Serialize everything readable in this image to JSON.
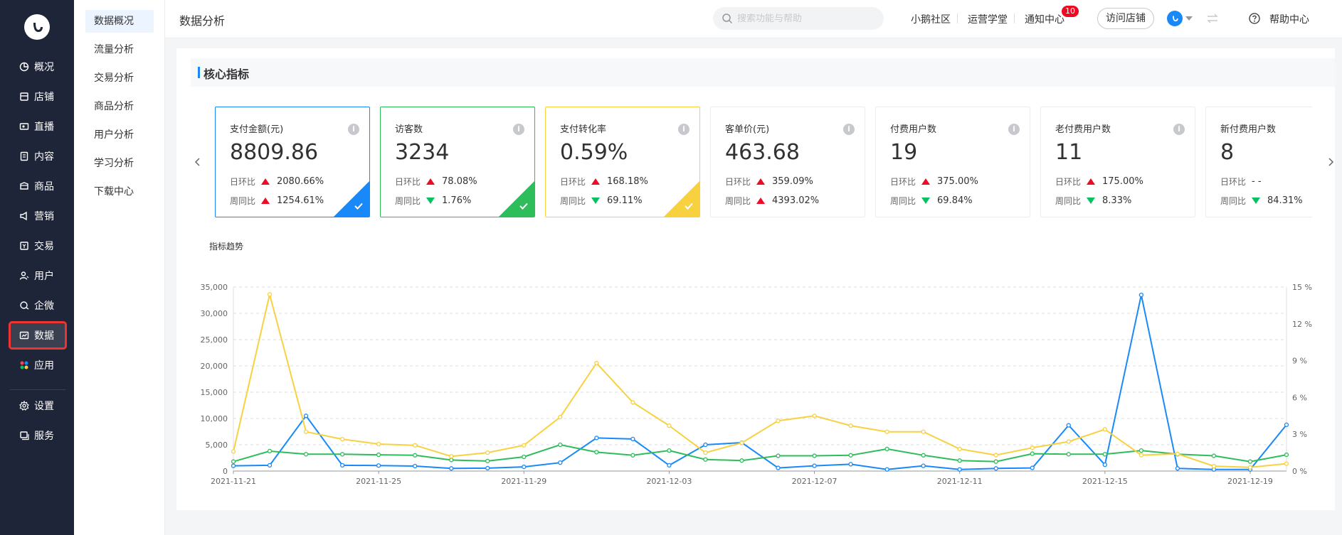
{
  "sidebar": {
    "items": [
      {
        "label": "概况",
        "icon": "pie-chart-icon"
      },
      {
        "label": "店铺",
        "icon": "shop-icon"
      },
      {
        "label": "直播",
        "icon": "live-icon"
      },
      {
        "label": "内容",
        "icon": "document-icon"
      },
      {
        "label": "商品",
        "icon": "goods-icon"
      },
      {
        "label": "营销",
        "icon": "megaphone-icon"
      },
      {
        "label": "交易",
        "icon": "trade-icon"
      },
      {
        "label": "用户",
        "icon": "user-icon"
      },
      {
        "label": "企微",
        "icon": "wecom-icon"
      },
      {
        "label": "数据",
        "icon": "data-icon"
      },
      {
        "label": "应用",
        "icon": "apps-icon"
      }
    ],
    "bottom_items": [
      {
        "label": "设置",
        "icon": "gear-icon"
      },
      {
        "label": "服务",
        "icon": "service-icon"
      }
    ],
    "active_label": "数据"
  },
  "subnav": {
    "items": [
      "数据概况",
      "流量分析",
      "交易分析",
      "商品分析",
      "用户分析",
      "学习分析",
      "下载中心"
    ],
    "active": "数据概况"
  },
  "header": {
    "title": "数据分析",
    "search_placeholder": "搜索功能与帮助",
    "links": [
      "小鹅社区",
      "运营学堂",
      "通知中心"
    ],
    "notification_count": "10",
    "visit_button": "访问店铺",
    "help": "帮助中心"
  },
  "section": {
    "title": "核心指标"
  },
  "cards": [
    {
      "label": "支付金额(元)",
      "value": "8809.86",
      "day_label": "日环比",
      "day_dir": "up",
      "day_value": "2080.66%",
      "week_label": "周同比",
      "week_dir": "up",
      "week_value": "1254.61%",
      "selected": true,
      "color": "#1989fa"
    },
    {
      "label": "访客数",
      "value": "3234",
      "day_label": "日环比",
      "day_dir": "up",
      "day_value": "78.08%",
      "week_label": "周同比",
      "week_dir": "down",
      "week_value": "1.76%",
      "selected": true,
      "color": "#2dbd5a"
    },
    {
      "label": "支付转化率",
      "value": "0.59%",
      "day_label": "日环比",
      "day_dir": "up",
      "day_value": "168.18%",
      "week_label": "周同比",
      "week_dir": "down",
      "week_value": "69.11%",
      "selected": true,
      "color": "#f8d140"
    },
    {
      "label": "客单价(元)",
      "value": "463.68",
      "day_label": "日环比",
      "day_dir": "up",
      "day_value": "359.09%",
      "week_label": "周同比",
      "week_dir": "up",
      "week_value": "4393.02%",
      "selected": false,
      "color": ""
    },
    {
      "label": "付费用户数",
      "value": "19",
      "day_label": "日环比",
      "day_dir": "up",
      "day_value": "375.00%",
      "week_label": "周同比",
      "week_dir": "down",
      "week_value": "69.84%",
      "selected": false,
      "color": ""
    },
    {
      "label": "老付费用户数",
      "value": "11",
      "day_label": "日环比",
      "day_dir": "up",
      "day_value": "175.00%",
      "week_label": "周同比",
      "week_dir": "down",
      "week_value": "8.33%",
      "selected": false,
      "color": ""
    },
    {
      "label": "新付费用户数",
      "value": "8",
      "day_label": "日环比",
      "day_dir": "none",
      "day_value": "- -",
      "week_label": "周同比",
      "week_dir": "down",
      "week_value": "84.31%",
      "selected": false,
      "color": ""
    }
  ],
  "trend_title": "指标趋势",
  "chart_data": {
    "type": "line",
    "x": [
      "2021-11-21",
      "2021-11-22",
      "2021-11-23",
      "2021-11-24",
      "2021-11-25",
      "2021-11-26",
      "2021-11-27",
      "2021-11-28",
      "2021-11-29",
      "2021-11-30",
      "2021-12-01",
      "2021-12-02",
      "2021-12-03",
      "2021-12-04",
      "2021-12-05",
      "2021-12-06",
      "2021-12-07",
      "2021-12-08",
      "2021-12-09",
      "2021-12-10",
      "2021-12-11",
      "2021-12-12",
      "2021-12-13",
      "2021-12-14",
      "2021-12-15",
      "2021-12-16",
      "2021-12-17",
      "2021-12-18",
      "2021-12-19",
      "2021-12-20"
    ],
    "xticks": [
      "2021-11-21",
      "2021-11-25",
      "2021-11-29",
      "2021-12-03",
      "2021-12-07",
      "2021-12-11",
      "2021-12-15",
      "2021-12-19"
    ],
    "y_left": {
      "min": 0,
      "max": 35000,
      "ticks": [
        "0",
        "5,000",
        "10,000",
        "15,000",
        "20,000",
        "25,000",
        "30,000",
        "35,000"
      ]
    },
    "y_right": {
      "min": 0,
      "max": 15,
      "ticks": [
        "0 %",
        "3 %",
        "6 %",
        "9 %",
        "12 %",
        "15 %"
      ]
    },
    "grid": true,
    "series": [
      {
        "color": "#1989fa",
        "axis": "left",
        "values": [
          1000,
          1100,
          10500,
          1100,
          1050,
          950,
          500,
          550,
          800,
          1600,
          6300,
          6100,
          1100,
          5000,
          5400,
          600,
          1000,
          1300,
          300,
          1000,
          300,
          500,
          600,
          8700,
          1200,
          33500,
          500,
          300,
          300,
          8800
        ]
      },
      {
        "color": "#2dbd5a",
        "axis": "left",
        "values": [
          1800,
          3800,
          3200,
          3200,
          3100,
          3000,
          2100,
          1900,
          2700,
          5000,
          3600,
          3000,
          3900,
          2200,
          2000,
          2900,
          2900,
          3000,
          4200,
          3000,
          2000,
          1800,
          3300,
          3200,
          3200,
          3900,
          3200,
          2900,
          1800,
          3100
        ]
      },
      {
        "color": "#f8d140",
        "axis": "right",
        "values": [
          1.6,
          14.4,
          3.2,
          2.6,
          2.2,
          2.1,
          1.2,
          1.5,
          2.1,
          4.4,
          8.8,
          5.6,
          3.7,
          1.5,
          2.3,
          4.1,
          4.5,
          3.7,
          3.2,
          3.2,
          1.8,
          1.3,
          1.9,
          2.4,
          3.4,
          1.3,
          1.4,
          0.4,
          0.3,
          0.6
        ]
      }
    ]
  }
}
